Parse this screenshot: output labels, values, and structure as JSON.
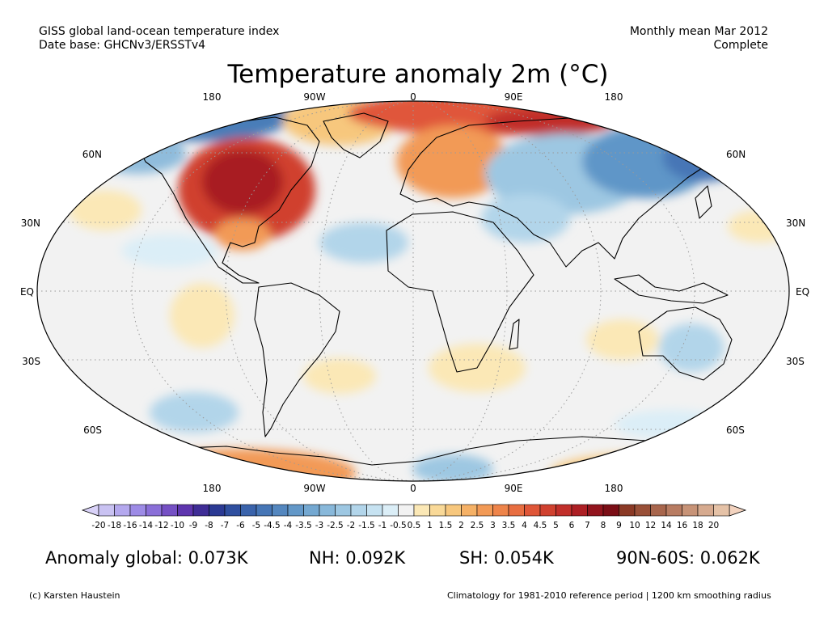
{
  "header": {
    "line1": "GISS global land-ocean temperature index",
    "line2": "Date base: GHCNv3/ERSSTv4",
    "period": "Monthly mean Mar 2012",
    "status": "Complete"
  },
  "title": "Temperature anomaly 2m (°C)",
  "axes": {
    "lon_top": [
      "180",
      "90W",
      "0",
      "90E",
      "180"
    ],
    "lon_bottom": [
      "180",
      "90W",
      "0",
      "90E",
      "180"
    ],
    "lat_left": [
      "60N",
      "30N",
      "EQ",
      "30S",
      "60S"
    ],
    "lat_right": [
      "60N",
      "30N",
      "EQ",
      "30S",
      "60S"
    ]
  },
  "colorbar": {
    "labels": [
      "-20",
      "-18",
      "-16",
      "-14",
      "-12",
      "-10",
      "-9",
      "-8",
      "-7",
      "-6",
      "-5",
      "-4.5",
      "-4",
      "-3.5",
      "-3",
      "-2.5",
      "-2",
      "-1.5",
      "-1",
      "-0.5",
      "0.5",
      "1",
      "1.5",
      "2",
      "2.5",
      "3",
      "3.5",
      "4",
      "4.5",
      "5",
      "6",
      "7",
      "8",
      "9",
      "10",
      "12",
      "14",
      "16",
      "18",
      "20"
    ],
    "colors": [
      "#c9c2f2",
      "#b4a8ee",
      "#9d8be6",
      "#8a6fd8",
      "#7550c4",
      "#5e35ae",
      "#3f2d96",
      "#2b3a94",
      "#2f4f9f",
      "#3a63ab",
      "#4676b6",
      "#5487bf",
      "#6398c8",
      "#74a8d1",
      "#88b8da",
      "#9dc7e2",
      "#b2d5ea",
      "#c6e2f1",
      "#dbeef7",
      "#f2f2f2",
      "#fbe8b6",
      "#f9d998",
      "#f7c77d",
      "#f5b166",
      "#f29a56",
      "#ee844a",
      "#e86e41",
      "#df5638",
      "#d0412f",
      "#c12f2a",
      "#ad1f24",
      "#92141d",
      "#7b0e16",
      "#8b3a26",
      "#995038",
      "#a8664d",
      "#b87c62",
      "#c79377",
      "#d6aa8f",
      "#e5c2a7"
    ],
    "under_color": "#d9d2f8",
    "over_color": "#f3d3bf"
  },
  "stats": {
    "global": "Anomaly global: 0.073K",
    "nh": "NH: 0.092K",
    "sh": "SH: 0.054K",
    "band": "90N-60S: 0.062K"
  },
  "footer": {
    "credit": "(c) Karsten Haustein",
    "note": "Climatology for 1981-2010 reference period | 1200 km smoothing radius"
  }
}
